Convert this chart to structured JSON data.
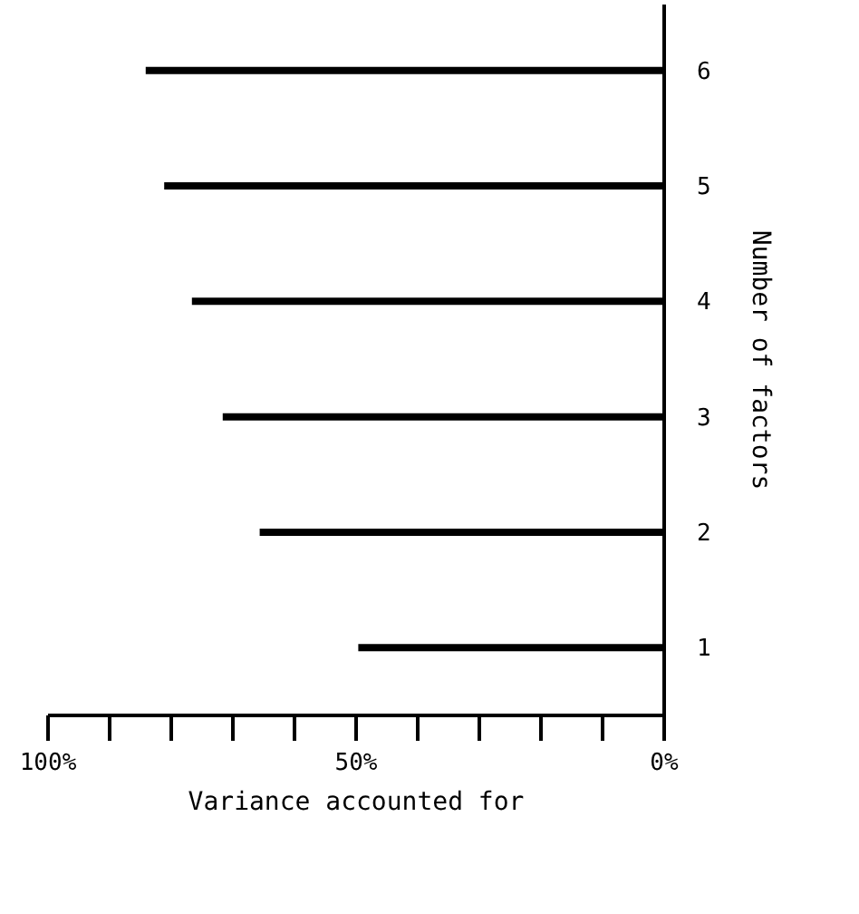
{
  "chart_data": {
    "type": "bar",
    "orientation": "horizontal",
    "xlabel": "Variance accounted for",
    "ylabel": "Number of factors",
    "categories": [
      "6",
      "5",
      "4",
      "3",
      "2",
      "1"
    ],
    "values": [
      84,
      81,
      76.5,
      71.5,
      65.5,
      49.5
    ],
    "color": "#000000",
    "xlim": [
      100,
      0
    ],
    "xticks": [
      {
        "value": 0,
        "label": "0%"
      },
      {
        "value": 10,
        "label": null
      },
      {
        "value": 20,
        "label": null
      },
      {
        "value": 30,
        "label": null
      },
      {
        "value": 40,
        "label": null
      },
      {
        "value": 50,
        "label": "50%"
      },
      {
        "value": 60,
        "label": null
      },
      {
        "value": 70,
        "label": null
      },
      {
        "value": 80,
        "label": null
      },
      {
        "value": 90,
        "label": null
      },
      {
        "value": 100,
        "label": "100%"
      }
    ],
    "grid": false
  }
}
